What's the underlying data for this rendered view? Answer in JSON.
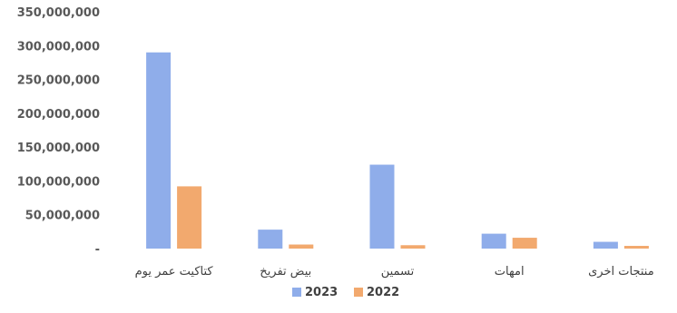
{
  "chart_data": {
    "type": "bar",
    "title": "",
    "xlabel": "",
    "ylabel": "",
    "categories": [
      "كتاكيت عمر يوم",
      "بيض تفريخ",
      "تسمين",
      "امهات",
      "منتجات اخرى"
    ],
    "series": [
      {
        "name": "2023",
        "color": "#8fadea",
        "values": [
          290000000,
          28000000,
          124000000,
          22000000,
          10000000
        ]
      },
      {
        "name": "2022",
        "color": "#f2a96e",
        "values": [
          92000000,
          6000000,
          5000000,
          16000000,
          4000000
        ]
      }
    ],
    "ylim": [
      0,
      350000000
    ],
    "yticks": [
      0,
      50000000,
      100000000,
      150000000,
      200000000,
      250000000,
      300000000,
      350000000
    ],
    "ytick_labels": [
      "-",
      "50,000,000",
      "100,000,000",
      "150,000,000",
      "200,000,000",
      "250,000,000",
      "300,000,000",
      "350,000,000"
    ],
    "grid": false,
    "legend_position": "bottom-center"
  }
}
